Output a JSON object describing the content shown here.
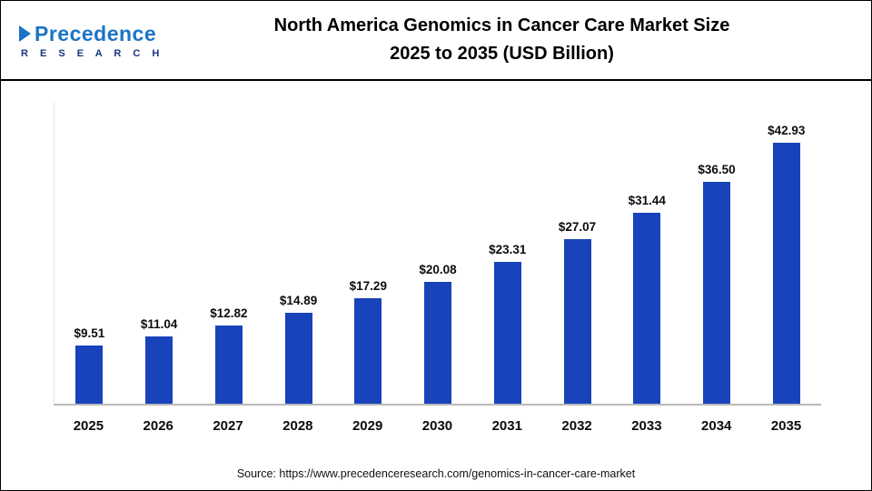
{
  "header": {
    "logo": {
      "name": "Precedence",
      "sub": "R E S E A R C H"
    },
    "title_line1": "North America Genomics in Cancer Care Market Size",
    "title_line2": "2025 to 2035 (USD Billion)"
  },
  "chart_data": {
    "type": "bar",
    "title": "North America Genomics in Cancer Care Market Size 2025 to 2035 (USD Billion)",
    "categories": [
      "2025",
      "2026",
      "2027",
      "2028",
      "2029",
      "2030",
      "2031",
      "2032",
      "2033",
      "2034",
      "2035"
    ],
    "values": [
      9.51,
      11.04,
      12.82,
      14.89,
      17.29,
      20.08,
      23.31,
      27.07,
      31.44,
      36.5,
      42.93
    ],
    "labels": [
      "$9.51",
      "$11.04",
      "$12.82",
      "$14.89",
      "$17.29",
      "$20.08",
      "$23.31",
      "$27.07",
      "$31.44",
      "$36.50",
      "$42.93"
    ],
    "bar_color": "#1843BA",
    "xlabel": "",
    "ylabel": "",
    "ylim": [
      0,
      45
    ],
    "grid": false,
    "legend_position": "none"
  },
  "footer": {
    "source": "Source: https://www.precedenceresearch.com/genomics-in-cancer-care-market"
  }
}
